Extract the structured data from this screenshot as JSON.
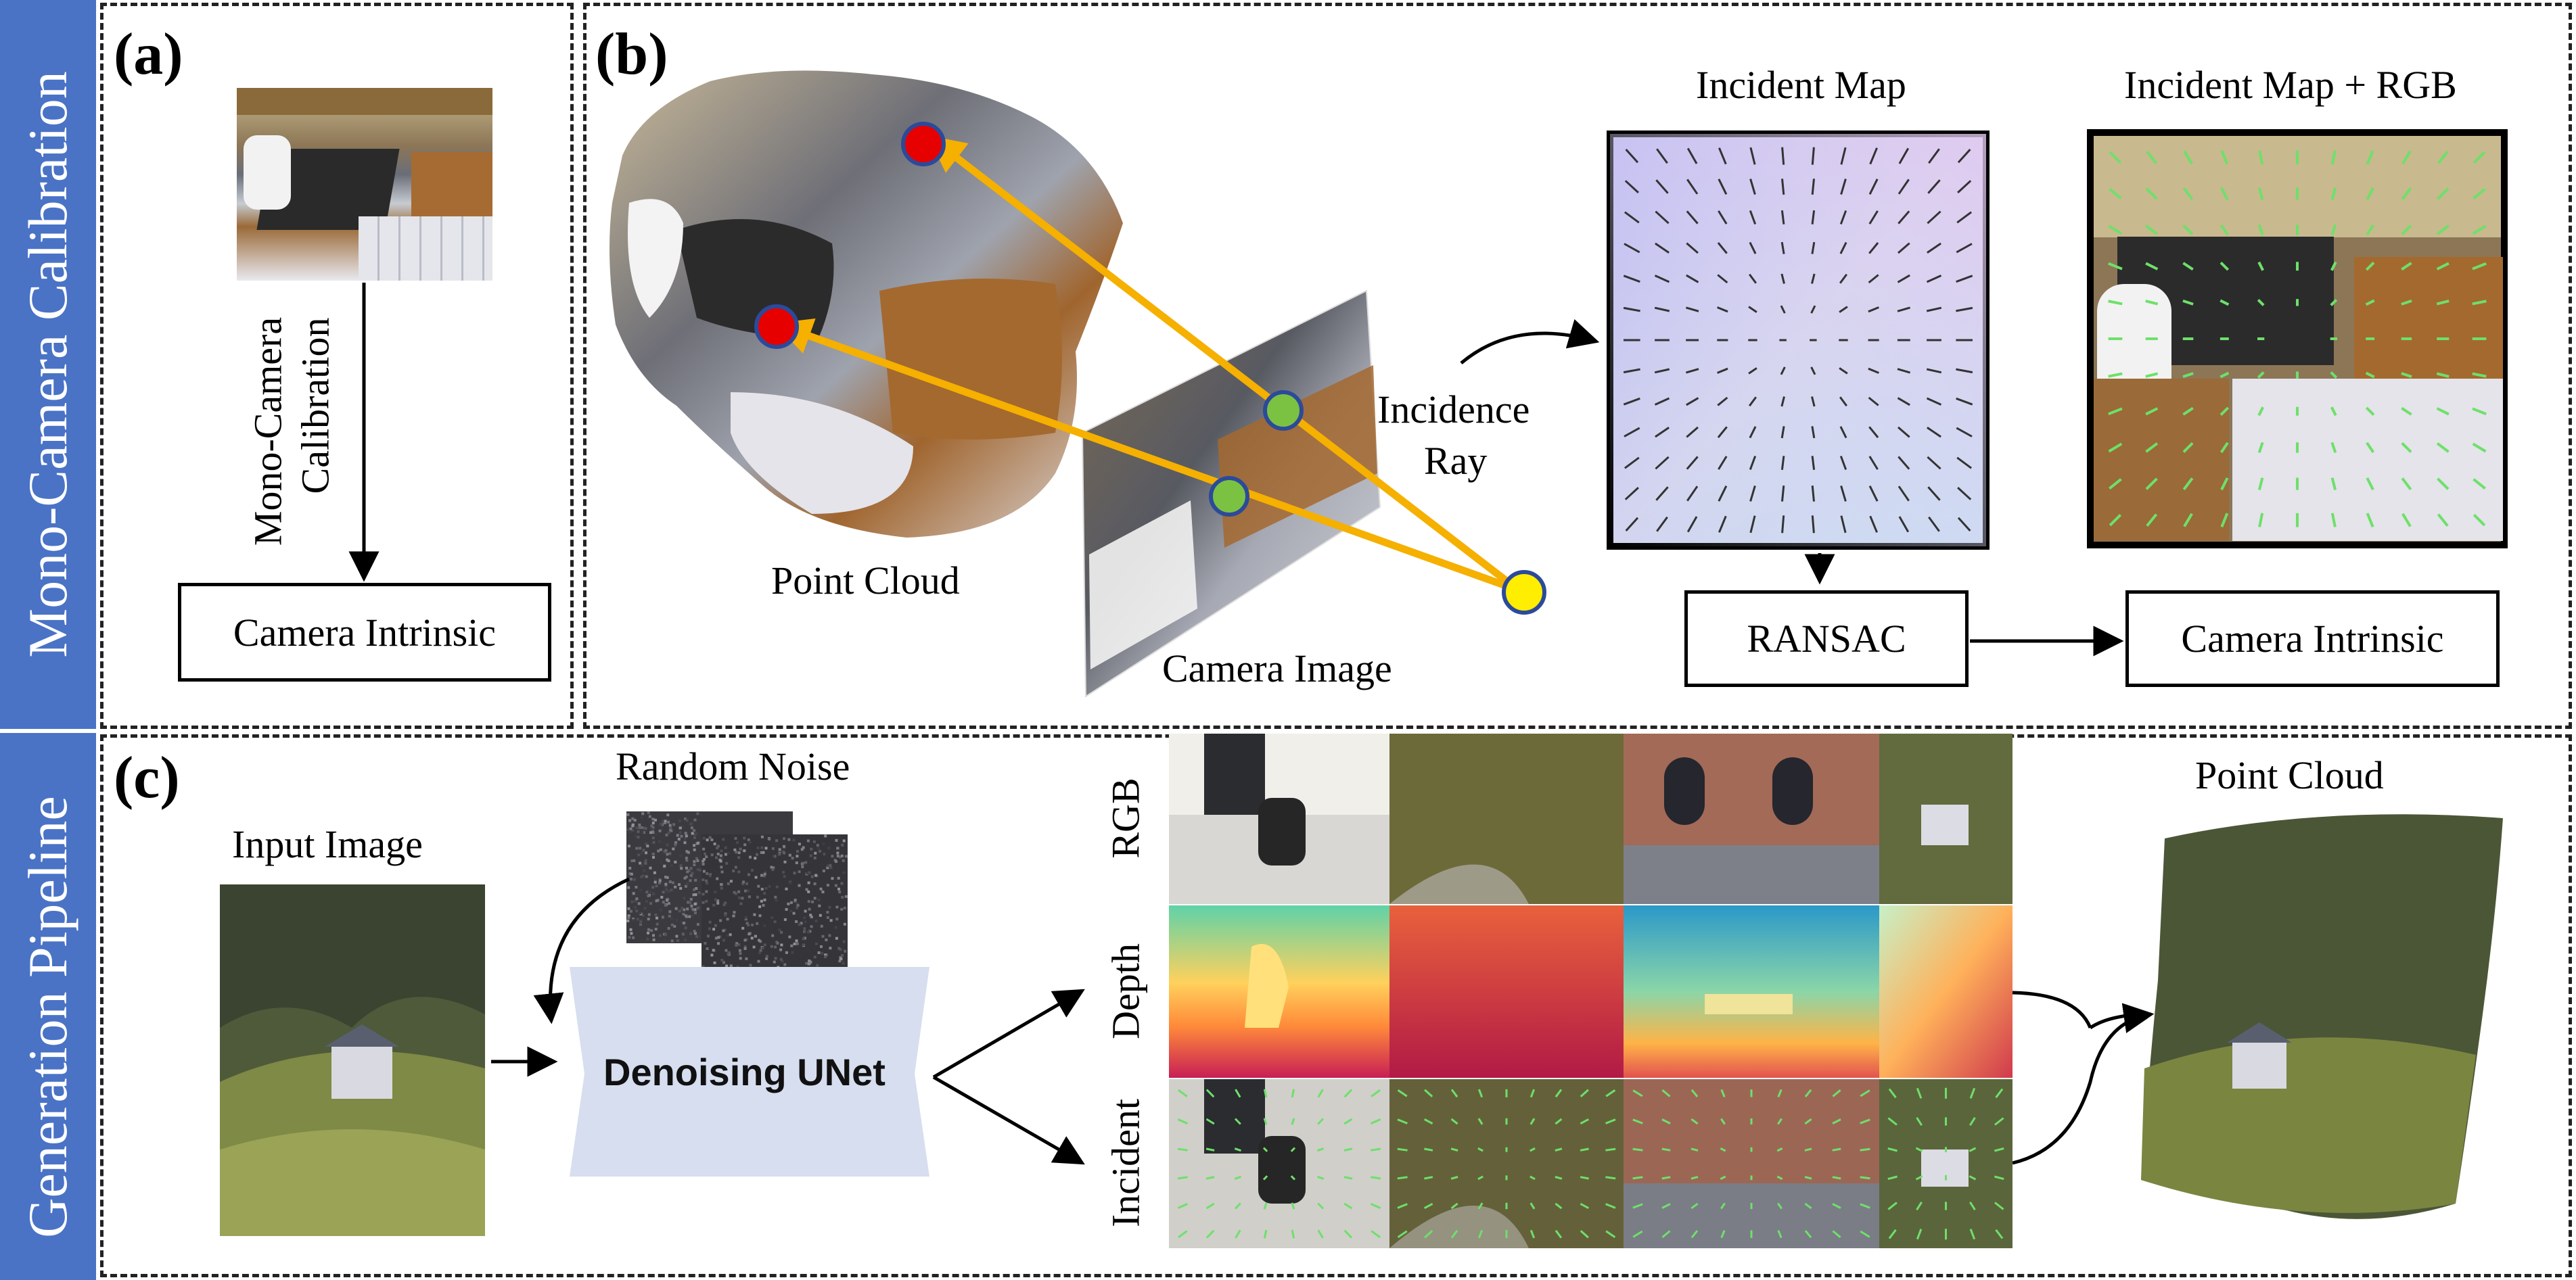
{
  "sidebar": {
    "top_label": "Mono-Camera Calibration",
    "bottom_label": "Generation Pipeline",
    "color": "#4a73c6"
  },
  "panel_a": {
    "label": "(a)",
    "arrow_label_line1": "Mono-Camera",
    "arrow_label_line2": "Calibration",
    "output_box": "Camera Intrinsic"
  },
  "panel_b": {
    "label": "(b)",
    "point_cloud_caption": "Point Cloud",
    "camera_image_caption": "Camera Image",
    "incidence_ray_line1": "Incidence",
    "incidence_ray_line2": "Ray",
    "incident_map_title": "Incident Map",
    "incident_map_rgb_title": "Incident Map + RGB",
    "ransac_box": "RANSAC",
    "intrinsic_box": "Camera Intrinsic"
  },
  "panel_c": {
    "label": "(c)",
    "input_image_title": "Input Image",
    "random_noise_title": "Random Noise",
    "unet_label": "Denoising UNet",
    "row_labels": [
      "RGB",
      "Depth",
      "Incident"
    ],
    "point_cloud_title": "Point Cloud"
  },
  "colors": {
    "ray": "#f5b000",
    "point_3d": "#e60000",
    "point_image": "#7cc242",
    "camera_center": "#ffee00",
    "unet": "#d6deef"
  },
  "icons": [
    "arrow-icon",
    "kitchen-photo",
    "point-cloud-render",
    "noise-image",
    "unet-shape"
  ]
}
